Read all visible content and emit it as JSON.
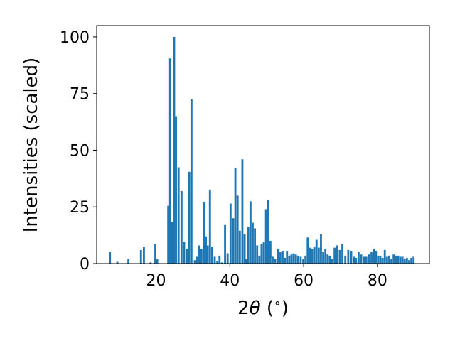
{
  "chart_data": {
    "type": "bar",
    "title": "",
    "xlabel_parts": [
      "2",
      "θ",
      " (",
      "∘",
      ")"
    ],
    "ylabel": "Intensities (scaled)",
    "xlim": [
      3.9,
      94.1
    ],
    "ylim": [
      0,
      105
    ],
    "x_ticks": [
      20,
      40,
      60,
      80
    ],
    "y_ticks": [
      0,
      25,
      50,
      75,
      100
    ],
    "bar_width": 0.55,
    "bar_color": "#1f77b4",
    "grid": false,
    "series": [
      {
        "x": [
          7.5,
          9.5,
          12.5,
          15.9,
          16.7,
          18.5,
          19.8,
          20.3,
          23.3,
          23.8,
          24.4,
          24.9,
          25.4,
          26.1,
          26.9,
          27.6,
          28.3,
          29.0,
          29.6,
          30.5,
          31.1,
          31.7,
          32.3,
          33.0,
          33.5,
          34.0,
          34.6,
          35.2,
          35.9,
          36.6,
          37.2,
          37.9,
          38.7,
          39.4,
          40.2,
          40.9,
          41.5,
          42.1,
          42.7,
          43.4,
          44.0,
          44.5,
          45.0,
          45.6,
          46.2,
          46.8,
          47.4,
          48.0,
          48.6,
          49.2,
          49.8,
          50.4,
          51.0,
          51.6,
          52.3,
          53.0,
          53.7,
          54.3,
          54.9,
          55.5,
          56.1,
          56.7,
          57.3,
          57.9,
          58.5,
          59.2,
          59.9,
          60.5,
          61.1,
          61.7,
          62.3,
          62.9,
          63.5,
          64.1,
          64.7,
          65.3,
          65.9,
          66.5,
          67.1,
          67.7,
          68.4,
          69.1,
          69.8,
          70.5,
          71.3,
          72.1,
          72.9,
          73.6,
          74.2,
          74.9,
          75.6,
          76.3,
          77.0,
          77.7,
          78.4,
          79.1,
          79.6,
          80.2,
          80.8,
          81.4,
          82.0,
          82.6,
          83.2,
          83.8,
          84.4,
          85.0,
          85.6,
          86.2,
          86.8,
          87.4,
          88.0,
          88.6,
          89.2,
          89.8
        ],
        "values": [
          5,
          0.8,
          2,
          6,
          7.5,
          0.5,
          8.5,
          2,
          25.5,
          90.5,
          18.5,
          100,
          65,
          42.5,
          32,
          9.5,
          6.5,
          40.5,
          72.5,
          1.5,
          3,
          8,
          6.5,
          27,
          12,
          8,
          32.5,
          7.5,
          3,
          1,
          3.5,
          0.5,
          17,
          4.5,
          26.5,
          20,
          42,
          30,
          14.5,
          46,
          13,
          2,
          16,
          27.5,
          18,
          15.5,
          8,
          3.5,
          8.5,
          9.5,
          24,
          28,
          10,
          3,
          2,
          6.5,
          5,
          5.5,
          2.5,
          5.5,
          3.5,
          4,
          4.5,
          4,
          3.5,
          3,
          2,
          3.5,
          11.5,
          7,
          6.5,
          7.5,
          10.5,
          7,
          13,
          5,
          6.5,
          4,
          3.5,
          2,
          7,
          8,
          6,
          8.5,
          3.5,
          6,
          5.5,
          3,
          2.5,
          5,
          4,
          3,
          3,
          4,
          5,
          6.5,
          5.5,
          3.5,
          3.5,
          2.5,
          6,
          3,
          3.5,
          2,
          4,
          3.5,
          3.5,
          3,
          3,
          2,
          2.5,
          1.5,
          2.5,
          3
        ]
      }
    ]
  }
}
